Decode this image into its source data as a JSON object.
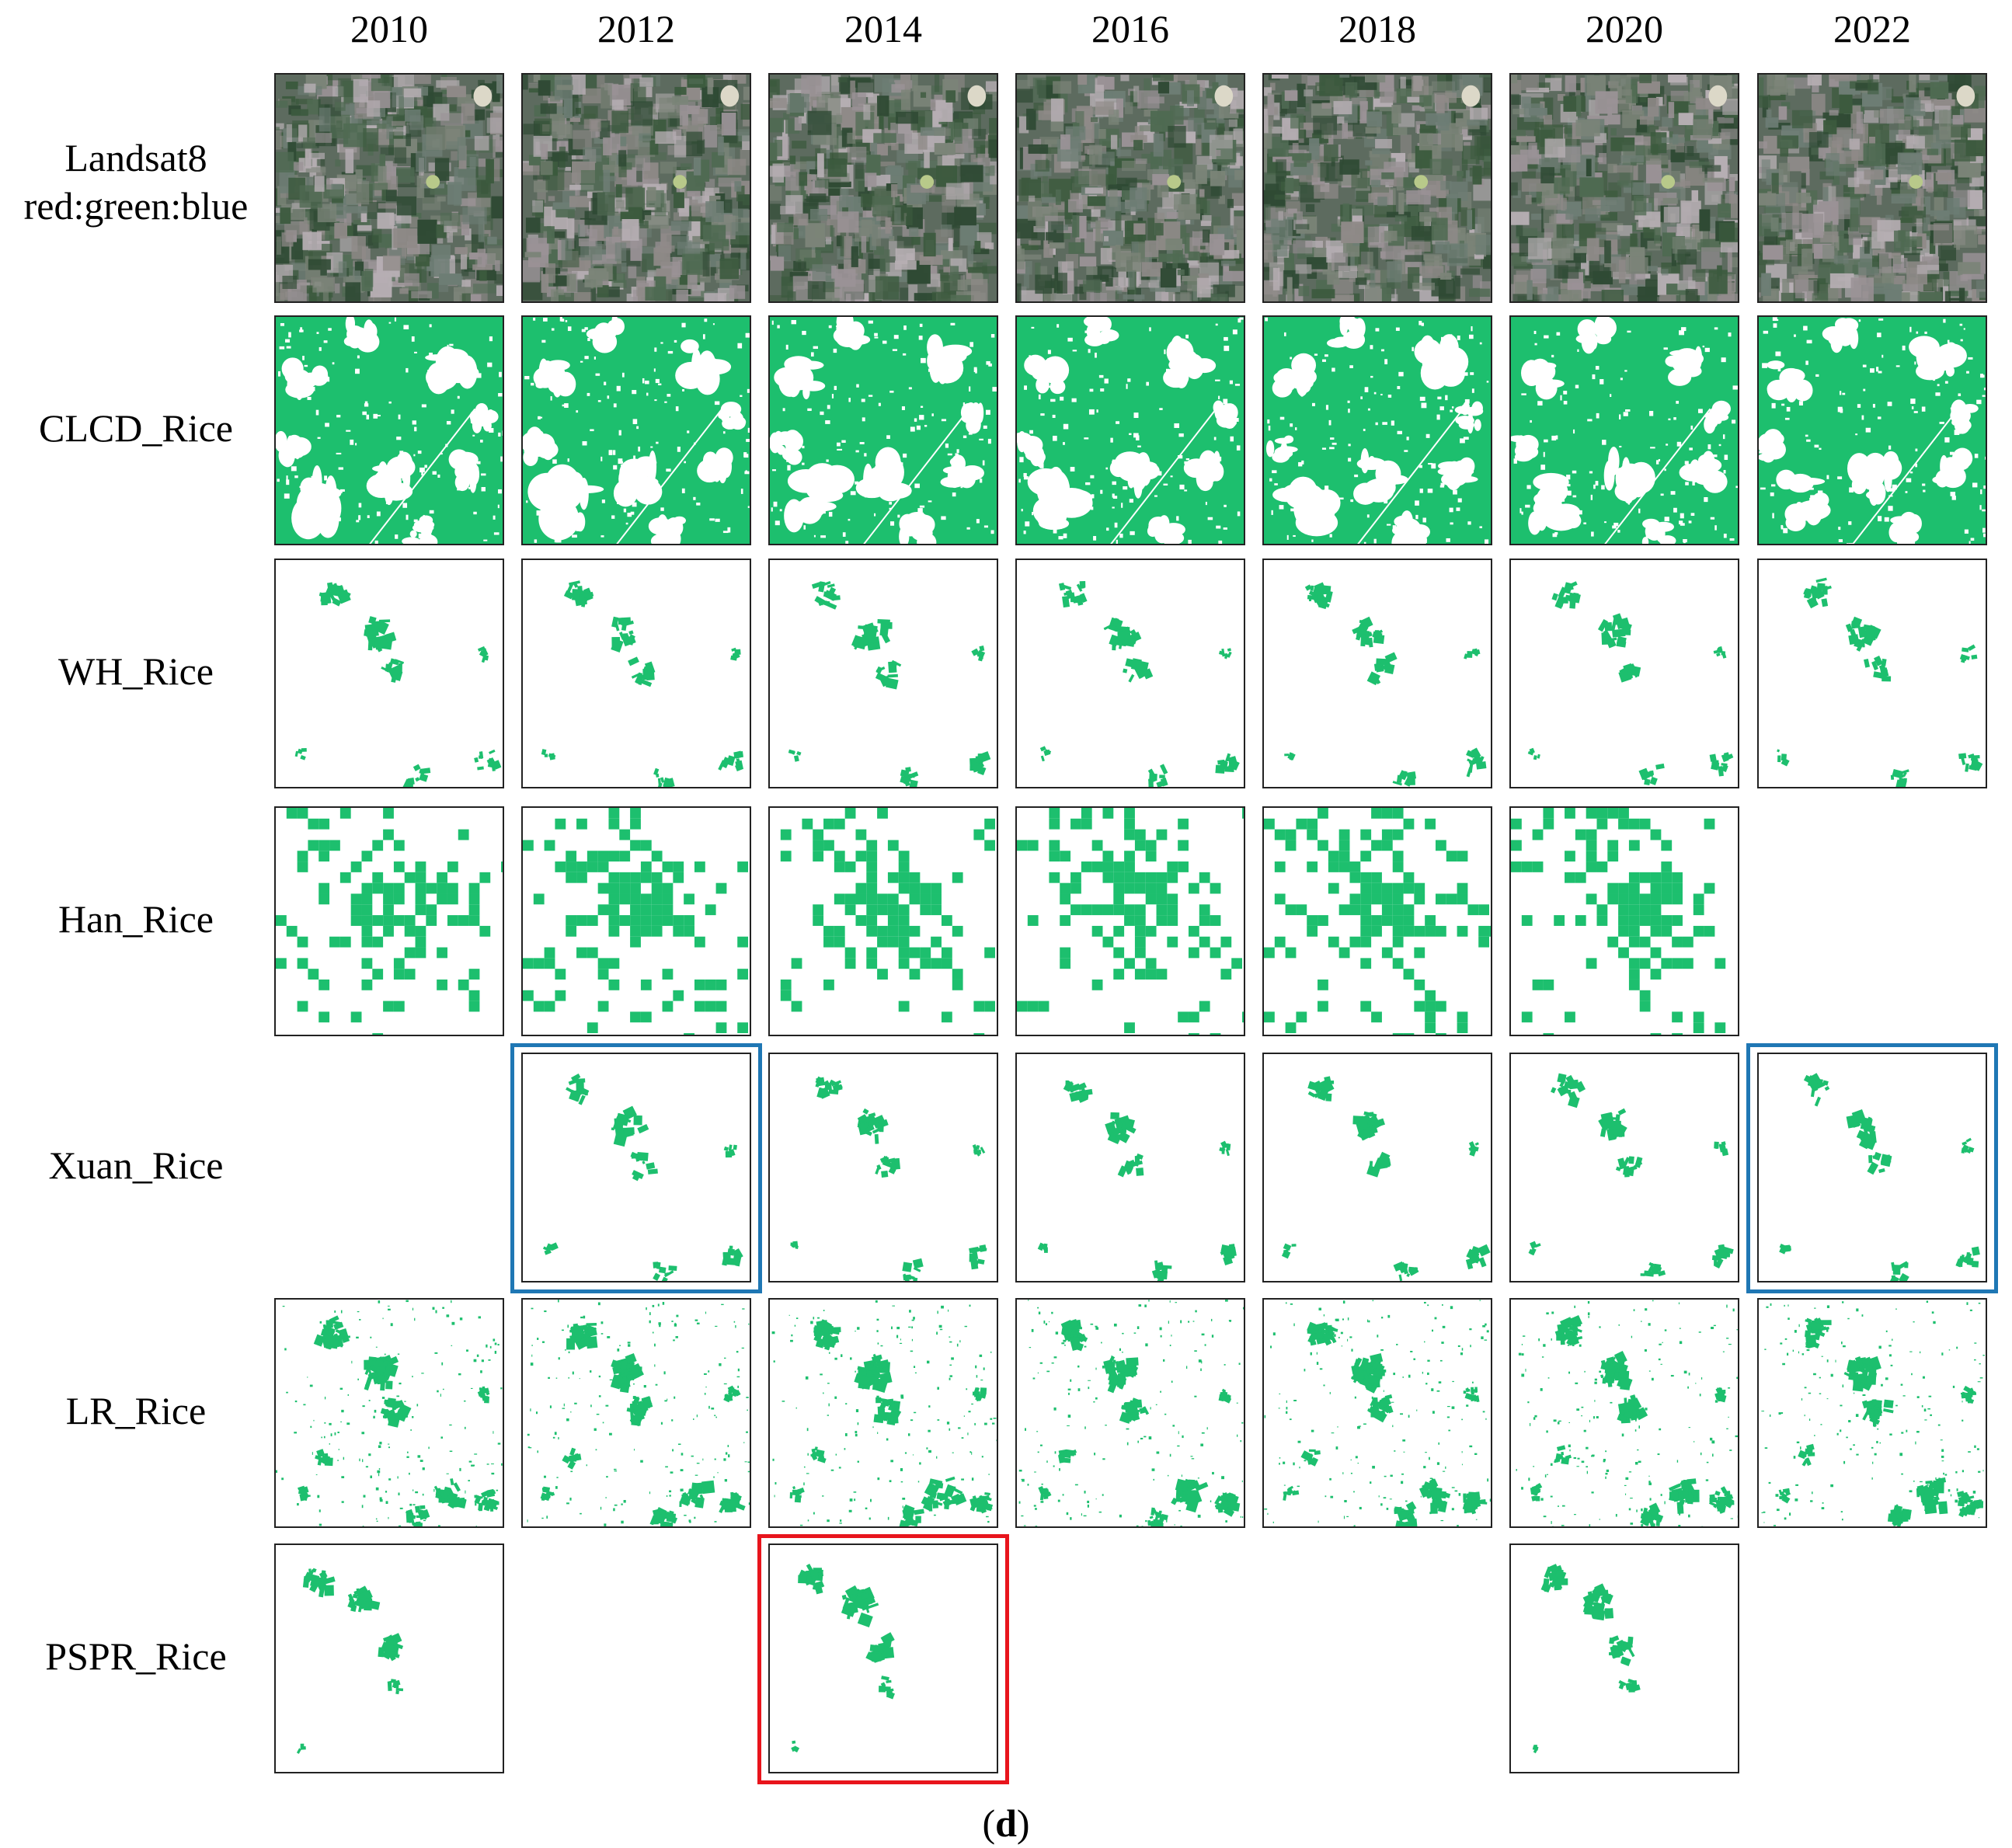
{
  "years": [
    "2010",
    "2012",
    "2014",
    "2016",
    "2018",
    "2020",
    "2022"
  ],
  "rows": [
    {
      "label_line1": "Landsat8",
      "label_line2": "red:green:blue",
      "kind": "satellite",
      "present": [
        1,
        1,
        1,
        1,
        1,
        1,
        1
      ]
    },
    {
      "label": "CLCD_Rice",
      "kind": "dense",
      "present": [
        1,
        1,
        1,
        1,
        1,
        1,
        1
      ]
    },
    {
      "label": "WH_Rice",
      "kind": "sparse",
      "present": [
        1,
        1,
        1,
        1,
        1,
        1,
        1
      ]
    },
    {
      "label": "Han_Rice",
      "kind": "coarse",
      "present": [
        1,
        1,
        1,
        1,
        1,
        1,
        0
      ]
    },
    {
      "label": "Xuan_Rice",
      "kind": "sparse",
      "present": [
        0,
        1,
        1,
        1,
        1,
        1,
        1
      ]
    },
    {
      "label": "LR_Rice",
      "kind": "medium",
      "present": [
        1,
        1,
        1,
        1,
        1,
        1,
        1
      ]
    },
    {
      "label": "PSPR_Rice",
      "kind": "sparse2",
      "present": [
        1,
        0,
        1,
        0,
        0,
        1,
        0
      ]
    }
  ],
  "highlights": [
    {
      "row": 4,
      "col": 1,
      "color": "blue"
    },
    {
      "row": 4,
      "col": 6,
      "color": "blue"
    },
    {
      "row": 6,
      "col": 2,
      "color": "red"
    }
  ],
  "colors": {
    "rice": "#1dbf6e",
    "blue_box": "#1f77b4",
    "red_box": "#e8141c"
  },
  "caption": {
    "open": "(",
    "letter": "d",
    "close": ")"
  }
}
